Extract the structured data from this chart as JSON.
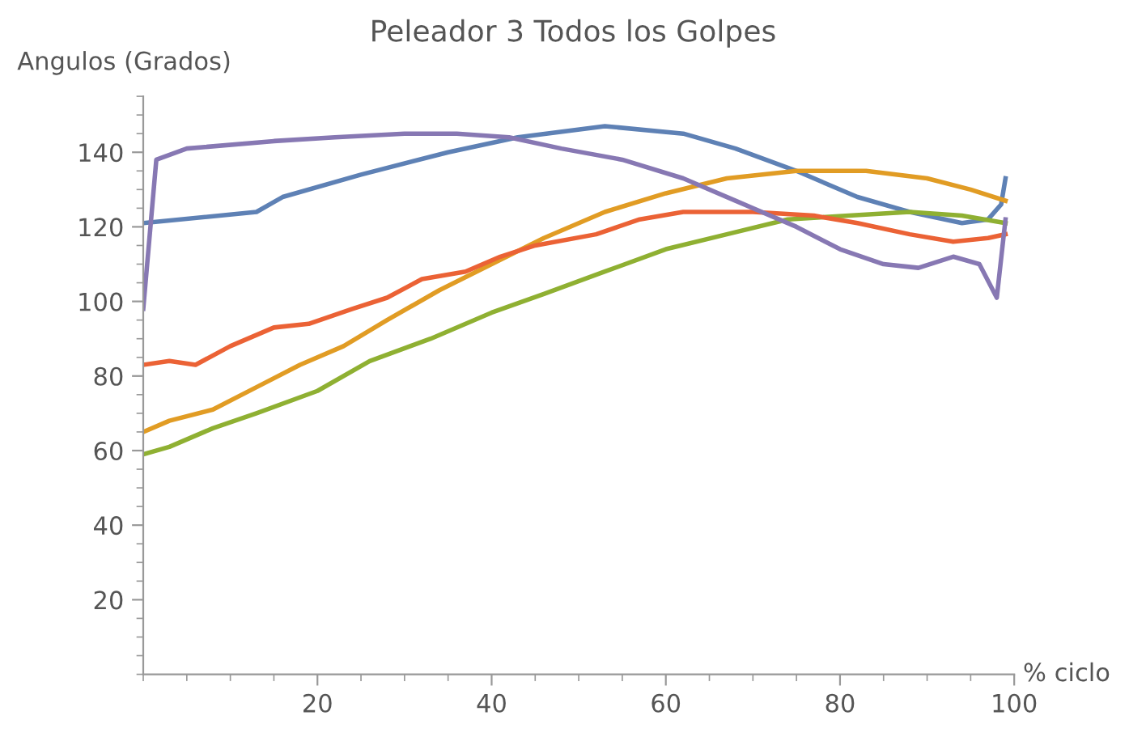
{
  "chart_data": {
    "type": "line",
    "title": "Peleador 3 Todos los Golpes",
    "ylabel": "Angulos (Grados)",
    "xlabel": "% ciclo",
    "xlim": [
      0,
      100
    ],
    "ylim": [
      0,
      155
    ],
    "xticks": [
      20,
      40,
      60,
      80,
      100
    ],
    "yticks": [
      20,
      40,
      60,
      80,
      100,
      120,
      140
    ],
    "grid": false,
    "legend": false,
    "line_style": "solid",
    "series": [
      {
        "color": "#5e81b5",
        "x": [
          0,
          13,
          16,
          25,
          35,
          43,
          53,
          62,
          68,
          75,
          82,
          88,
          94,
          97,
          98.5,
          99
        ],
        "values": [
          121,
          124,
          128,
          134,
          140,
          144,
          147,
          145,
          141,
          135,
          128,
          124,
          121,
          122,
          126,
          133
        ]
      },
      {
        "color": "#e19c24",
        "x": [
          0,
          3,
          8,
          13,
          18,
          23,
          28,
          34,
          40,
          46,
          53,
          60,
          67,
          75,
          83,
          90,
          95,
          99
        ],
        "values": [
          65,
          68,
          71,
          77,
          83,
          88,
          95,
          103,
          110,
          117,
          124,
          129,
          133,
          135,
          135,
          133,
          130,
          127
        ]
      },
      {
        "color": "#8fb032",
        "x": [
          0,
          3,
          8,
          13,
          20,
          26,
          33,
          40,
          46,
          53,
          60,
          67,
          74,
          81,
          88,
          94,
          99
        ],
        "values": [
          59,
          61,
          66,
          70,
          76,
          84,
          90,
          97,
          102,
          108,
          114,
          118,
          122,
          123,
          124,
          123,
          121
        ]
      },
      {
        "color": "#eb6235",
        "x": [
          0,
          3,
          6,
          10,
          15,
          19,
          24,
          28,
          32,
          37,
          41,
          45,
          52,
          57,
          62,
          70,
          77,
          82,
          88,
          93,
          97,
          99
        ],
        "values": [
          83,
          84,
          83,
          88,
          93,
          94,
          98,
          101,
          106,
          108,
          112,
          115,
          118,
          122,
          124,
          124,
          123,
          121,
          118,
          116,
          117,
          118
        ]
      },
      {
        "color": "#8778b3",
        "x": [
          0,
          1.5,
          5,
          15,
          22,
          30,
          36,
          42,
          48,
          55,
          62,
          68,
          75,
          80,
          85,
          89,
          93,
          96,
          98,
          99
        ],
        "values": [
          98,
          138,
          141,
          143,
          144,
          145,
          145,
          144,
          141,
          138,
          133,
          127,
          120,
          114,
          110,
          109,
          112,
          110,
          101,
          122
        ]
      }
    ]
  }
}
